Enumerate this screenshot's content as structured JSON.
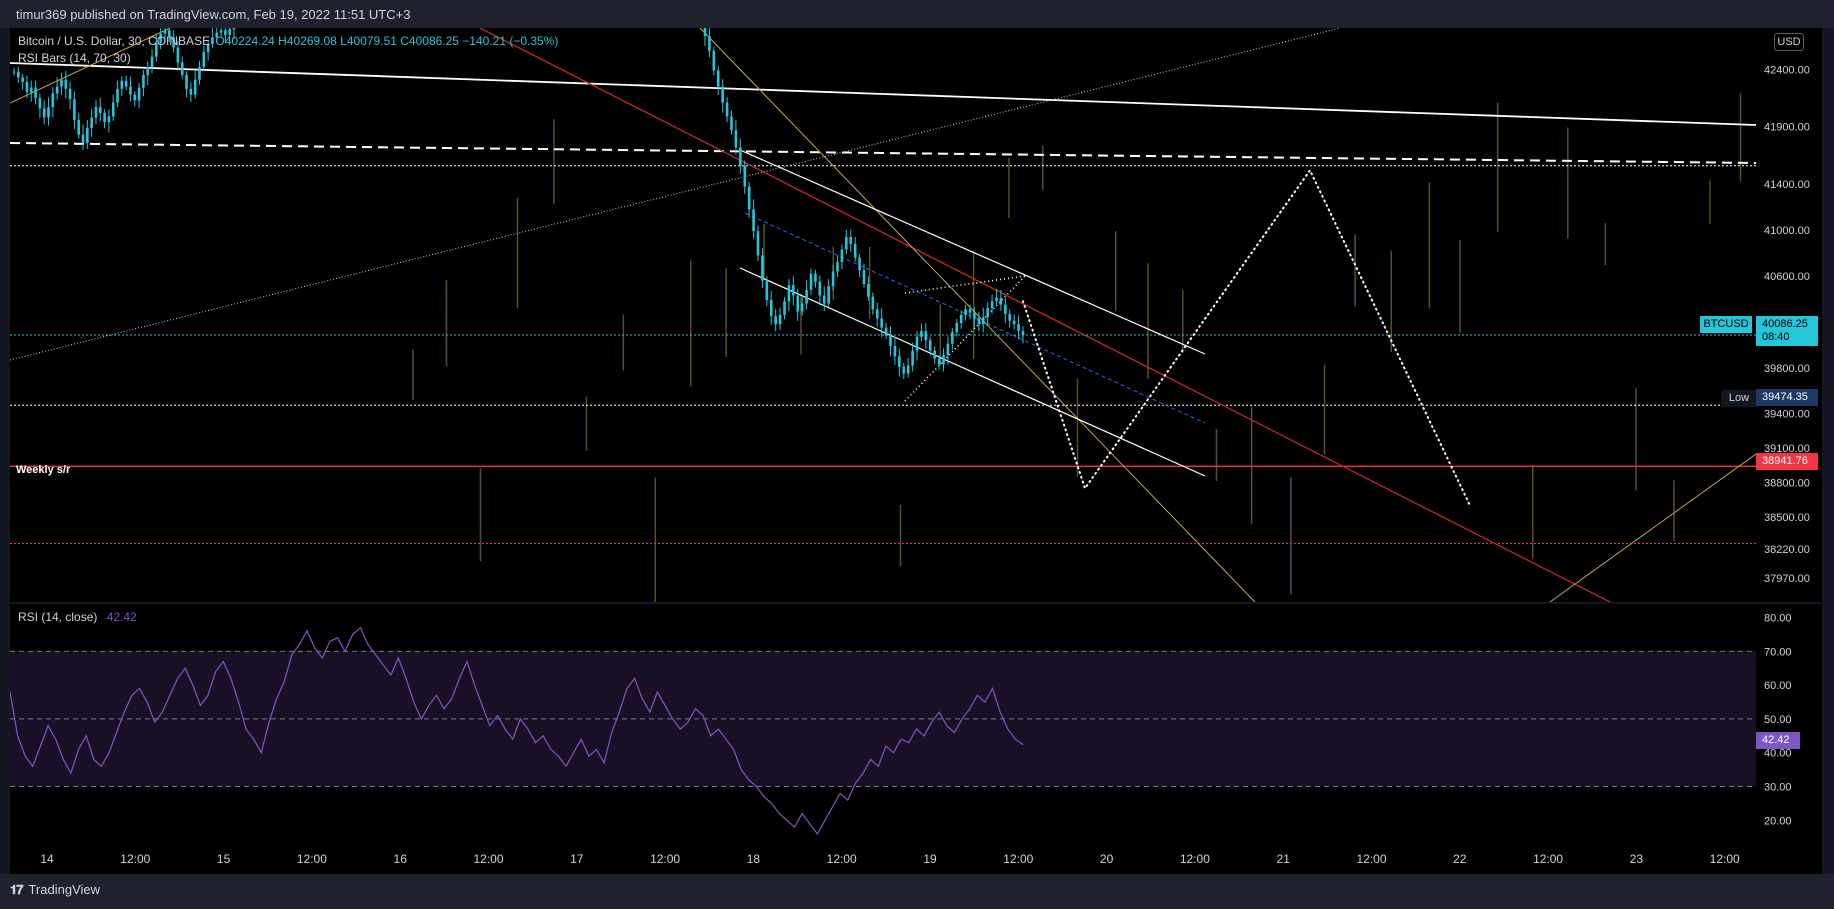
{
  "header": {
    "published": "timur369 published on TradingView.com, Feb 19, 2022 11:51 UTC+3"
  },
  "legend": {
    "symbol": "Bitcoin / U.S. Dollar, 30, COINBASE",
    "ohlc": "O40224.24  H40269.08  L40079.51  C40086.25  −140.21 (−0.35%)",
    "indicator": "RSI Bars (14, 70, 30)"
  },
  "rsi_legend": {
    "name": "RSI (14, close)",
    "value": "42.42"
  },
  "annotation": {
    "weekly_sr": "Weekly s/r"
  },
  "currency": "USD",
  "price_labels": {
    "btcusd_name": "BTCUSD",
    "btcusd_price": "40086.25",
    "btcusd_time": "08:40",
    "low_name": "Low",
    "low_price": "39474.35",
    "weekly_price": "38941.76",
    "rsi_value": "42.42"
  },
  "colors": {
    "background": "#000000",
    "candle": "#26c6da",
    "weekly_line": "#f23645",
    "rsi_line": "#7e57c2",
    "trendline_red": "#c62828",
    "trendline_yellow": "#c7a93a",
    "rsi_bars": "#5c5020"
  },
  "footer": {
    "brand": "TradingView"
  },
  "chart_data": [
    {
      "type": "line",
      "name": "price",
      "ylim": [
        37760,
        42760
      ],
      "y_ticks": [
        "42400.00",
        "41900.00",
        "41400.00",
        "41000.00",
        "40600.00",
        "40200.00",
        "39800.00",
        "39400.00",
        "39100.00",
        "38800.00",
        "38500.00",
        "38220.00",
        "37970.00"
      ],
      "y_tick_values": [
        42400,
        41900,
        41400,
        41000,
        40600,
        40200,
        39800,
        39400,
        39100,
        38800,
        38500,
        38220,
        37970
      ],
      "x_ticks": [
        "14",
        "12:00",
        "15",
        "12:00",
        "16",
        "12:00",
        "17",
        "12:00",
        "18",
        "12:00",
        "19",
        "12:00",
        "20",
        "12:00",
        "21",
        "12:00",
        "22",
        "12:00",
        "23",
        "12:00"
      ],
      "close": [
        42380,
        42330,
        42290,
        42200,
        42240,
        42150,
        42060,
        41980,
        42070,
        42190,
        42250,
        42310,
        42230,
        42140,
        41960,
        41830,
        41760,
        41890,
        41980,
        42070,
        42020,
        41940,
        41990,
        42110,
        42230,
        42300,
        42250,
        42180,
        42130,
        42240,
        42350,
        42420,
        42510,
        42630,
        42710,
        42740,
        42680,
        42590,
        42460,
        42350,
        42230,
        42180,
        42310,
        42420,
        42550,
        42620,
        42680,
        42720,
        42740,
        42700,
        42750,
        42760,
        42690,
        42560,
        42390,
        42250,
        42110,
        41990,
        41870,
        41720,
        41560,
        41380,
        41180,
        40990,
        40780,
        40560,
        40390,
        40250,
        40180,
        40260,
        40380,
        40520,
        40430,
        40290,
        40360,
        40480,
        40620,
        40550,
        40430,
        40360,
        40510,
        40640,
        40720,
        40830,
        40940,
        40880,
        40760,
        40650,
        40530,
        40420,
        40310,
        40230,
        40150,
        40080,
        39990,
        39900,
        39810,
        39750,
        39820,
        39950,
        40070,
        40120,
        40040,
        39950,
        39880,
        39830,
        39910,
        40010,
        40110,
        40190,
        40260,
        40310,
        40280,
        40230,
        40180,
        40240,
        40320,
        40380,
        40410,
        40350,
        40270,
        40210,
        40180,
        40120,
        40086.25
      ],
      "horizontal_levels": [
        {
          "value": 38941.76,
          "label": "Weekly s/r",
          "style": "solid",
          "color": "#f23645"
        },
        {
          "value": 39474.35,
          "style": "dotted",
          "color": "#ffffff"
        },
        {
          "value": 40086.25,
          "style": "dotted",
          "color": "#26c6da"
        },
        {
          "value": 41560,
          "style": "dotted",
          "color": "#ffffff"
        },
        {
          "value": 38270,
          "style": "dotted",
          "color": "#f23645"
        }
      ],
      "projection": [
        {
          "value": 40380
        },
        {
          "value": 38750
        },
        {
          "value": 41520
        },
        {
          "value": 38600
        }
      ]
    },
    {
      "type": "line",
      "name": "RSI (14, close)",
      "ylim": [
        13,
        84
      ],
      "y_ticks": [
        "80.00",
        "70.00",
        "60.00",
        "50.00",
        "40.00",
        "30.00",
        "20.00"
      ],
      "y_tick_values": [
        80,
        70,
        60,
        50,
        40,
        30,
        20
      ],
      "bands": [
        70,
        50,
        30
      ],
      "last": 42.42,
      "values": [
        58,
        45,
        39,
        36,
        42,
        48,
        44,
        38,
        34,
        41,
        45,
        38,
        36,
        40,
        46,
        52,
        57,
        59,
        55,
        49,
        52,
        57,
        62,
        65,
        60,
        54,
        57,
        64,
        67,
        62,
        55,
        47,
        44,
        40,
        49,
        56,
        61,
        69,
        72,
        76,
        71,
        68,
        73,
        74,
        70,
        75,
        77,
        72,
        69,
        66,
        63,
        68,
        62,
        55,
        50,
        54,
        57,
        53,
        56,
        62,
        67,
        60,
        54,
        48,
        51,
        47,
        44,
        50,
        47,
        43,
        45,
        41,
        39,
        36,
        40,
        44,
        39,
        41,
        37,
        46,
        52,
        59,
        62,
        56,
        52,
        58,
        54,
        50,
        47,
        49,
        53,
        51,
        45,
        47,
        44,
        41,
        35,
        32,
        30,
        27,
        25,
        22,
        20,
        18,
        22,
        19,
        16,
        20,
        24,
        28,
        26,
        31,
        34,
        38,
        36,
        42,
        40,
        44,
        43,
        47,
        45,
        49,
        52,
        48,
        46,
        50,
        53,
        57,
        55,
        59,
        52,
        47,
        44,
        42.42
      ]
    }
  ]
}
